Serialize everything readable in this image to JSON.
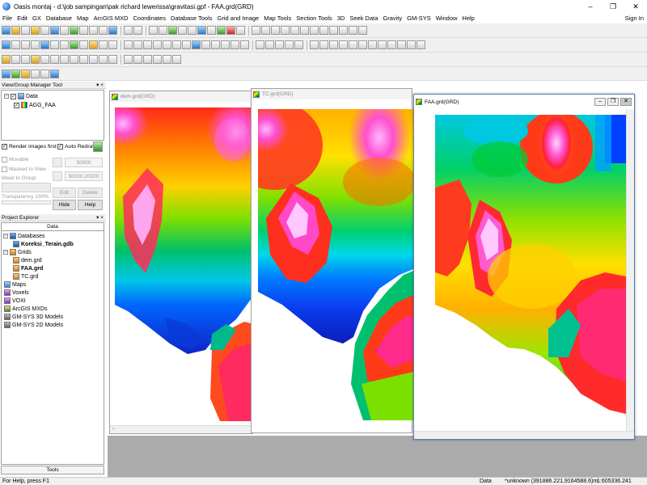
{
  "window": {
    "title": "Oasis montaj - d:\\job sampingan\\pak richard lewerissa\\gravitasi.gpf - FAA.grd(GRD)",
    "minimize": "–",
    "restore": "❐",
    "close": "✕"
  },
  "menu": {
    "items": [
      "File",
      "Edit",
      "GX",
      "Database",
      "Map",
      "ArcGIS MXD",
      "Coordinates",
      "Database Tools",
      "Grid and Image",
      "Map Tools",
      "Section Tools",
      "3D",
      "Seek Data",
      "Gravity",
      "GM-SYS",
      "Window",
      "Help"
    ],
    "signin": "Sign In"
  },
  "view_group_manager": {
    "header": "View/Group Manager Tool",
    "pin": "▾ ×",
    "root_label": "Data",
    "child_label": "AGG_FAA",
    "render_images_first": "Render images first",
    "auto_redraw": "Auto Redraw",
    "movable": "Movable",
    "masked_to_view": "Masked to View",
    "mask_to_group": "Mask to Group",
    "transparency": "Transparency 100%",
    "value1": "50000",
    "value2": "50000 20000",
    "edit": "Edit",
    "delete": "Delete",
    "hide": "Hide",
    "help": "Help"
  },
  "project_explorer": {
    "header": "Project Explorer",
    "pin": "▾ ×",
    "tab": "Data",
    "footer_tab": "Tools",
    "databases": "Databases",
    "database_item": "Koreksi_Terain.gdb",
    "grids": "Grids",
    "grid_items": [
      "dem.grd",
      "FAA.grd",
      "TC.grd"
    ],
    "maps": "Maps",
    "voxels": "Voxels",
    "voxi": "VOXI",
    "arcgis": "ArcGIS MXDs",
    "gmsys3d": "GM-SYS 3D Models",
    "gmsys2d": "GM-SYS 2D Models"
  },
  "windows": {
    "dem": {
      "title": "dem.grd(GRD)"
    },
    "tc": {
      "title": "TC.grd(GRD)"
    },
    "faa": {
      "title": "FAA.grd(GRD)",
      "minimize": "–",
      "restore": "❐",
      "close": "✕"
    }
  },
  "status": {
    "help": "For Help, press F1",
    "mode": "Data",
    "coords": "*unknown  (391886.221,9164588.6)m",
    "scale": "1:605336.241"
  },
  "colors": {
    "accent": "#0a4fa8",
    "active_border": "#5a7fb5"
  }
}
